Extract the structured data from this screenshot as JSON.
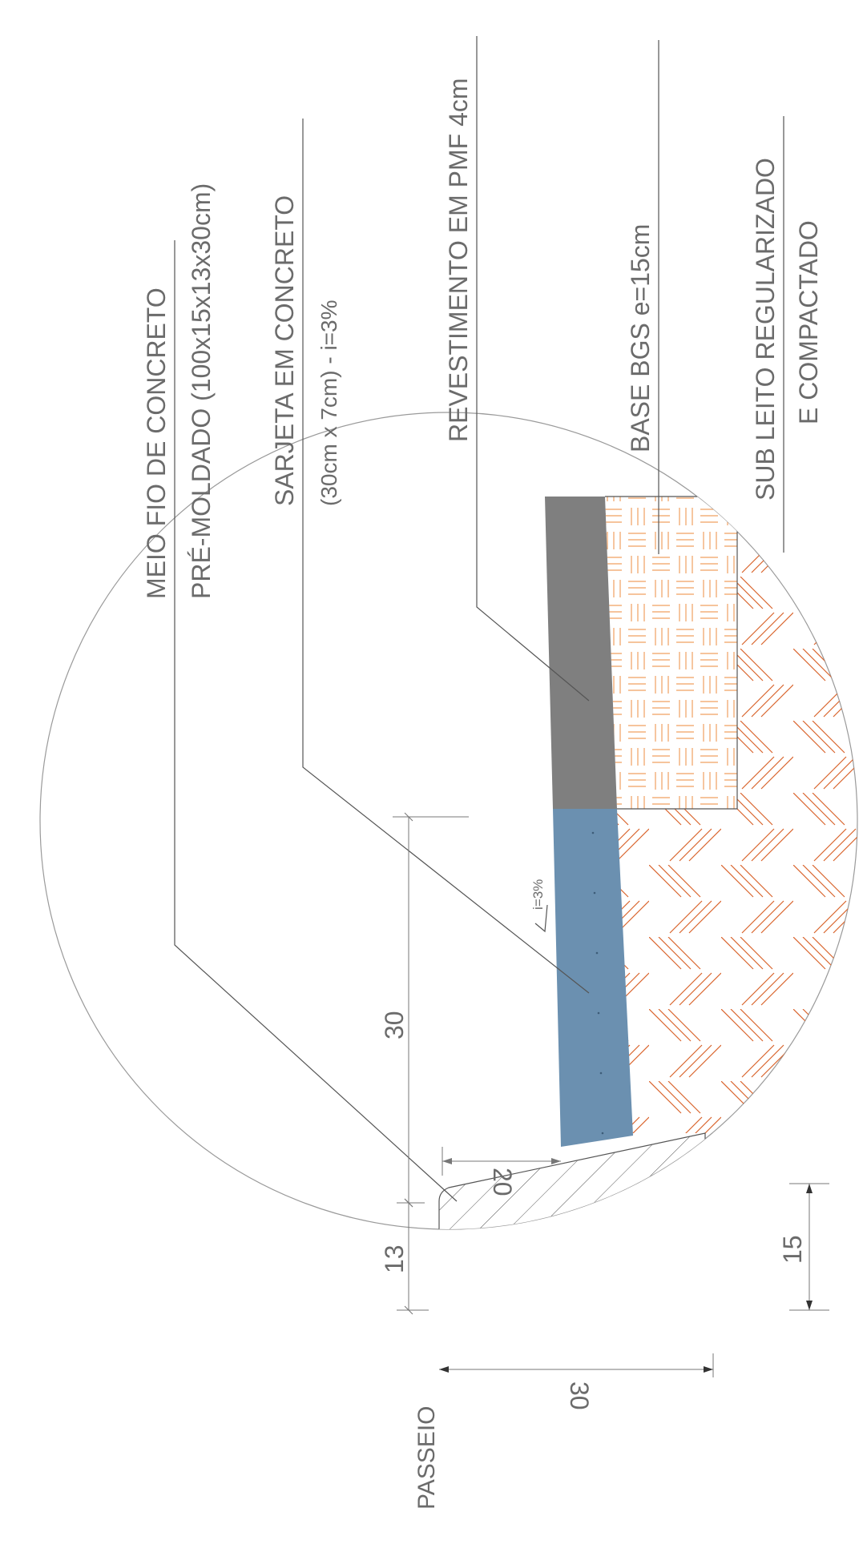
{
  "labels": {
    "meio_fio_l1": "MEIO FIO DE CONCRETO",
    "meio_fio_l2": "PRÉ-MOLDADO (100x15x13x30cm)",
    "sarjeta_l1": "SARJETA EM CONCRETO",
    "sarjeta_l2": "(30cm x 7cm) - i=3%",
    "revestimento": "REVESTIMENTO EM PMF 4cm",
    "base": "BASE BGS e=15cm",
    "subleito_l1": "SUB LEITO REGULARIZADO",
    "subleito_l2": "E COMPACTADO",
    "passeio": "PASSEIO",
    "slope": "i=3%"
  },
  "dimensions": {
    "sarjeta_width": "30",
    "gutter_height": "20",
    "curb_top": "13",
    "curb_depth": "30",
    "curb_base": "15"
  },
  "colors": {
    "revestimento": "#7f7f7f",
    "sarjeta": "#6b90b0",
    "passeio": "#d9d9d9",
    "base_hatch": "#f0a060",
    "soil_hatch": "#d9622b",
    "curb_hatch": "#555555"
  }
}
